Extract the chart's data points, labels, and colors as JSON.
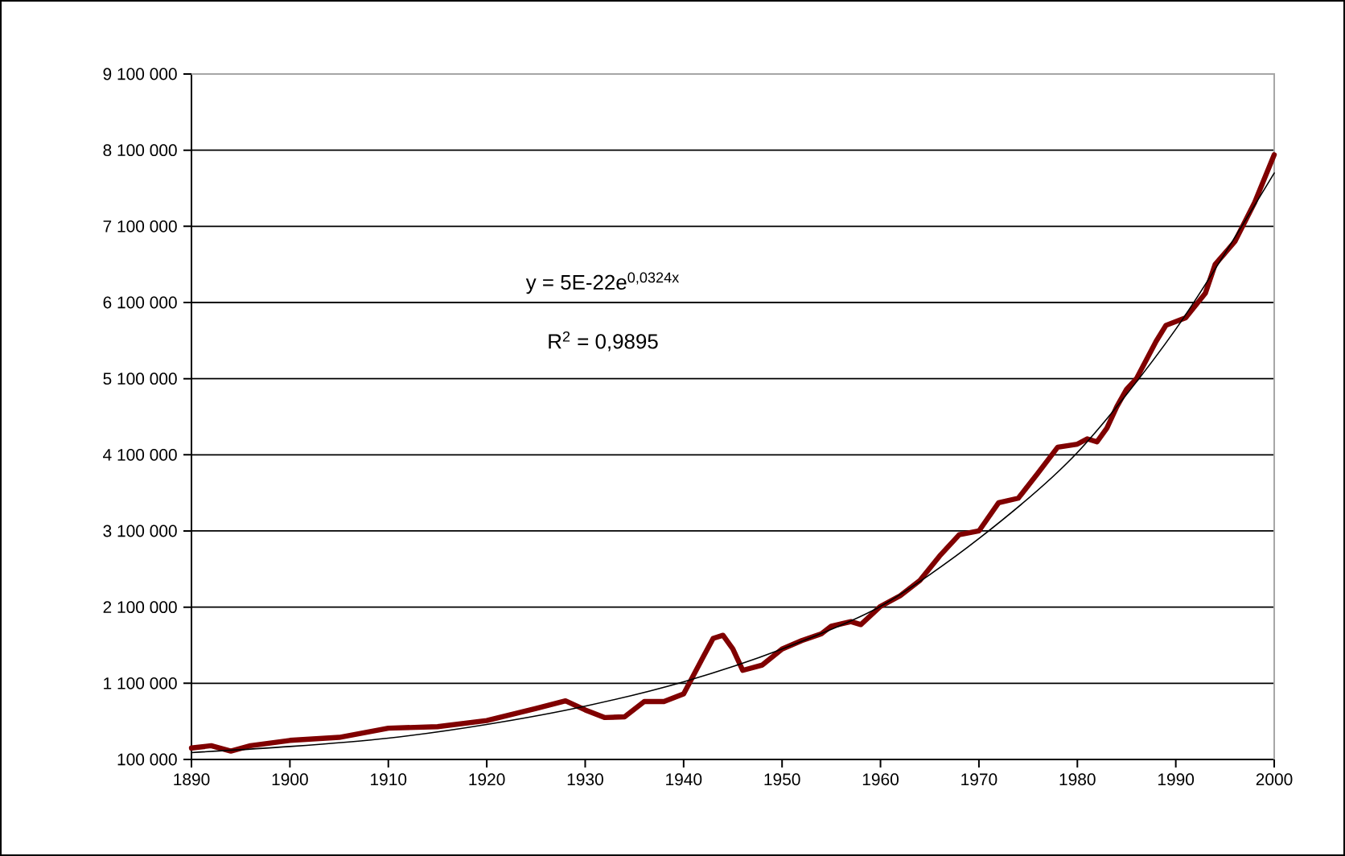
{
  "chart_data": {
    "type": "line",
    "xlim": [
      1890,
      2000
    ],
    "ylim": [
      100000,
      9100000
    ],
    "xticks": [
      1890,
      1900,
      1910,
      1920,
      1930,
      1940,
      1950,
      1960,
      1970,
      1980,
      1990,
      2000
    ],
    "yticks": [
      {
        "value": 100000,
        "label": "100 000"
      },
      {
        "value": 1100000,
        "label": "1 100 000"
      },
      {
        "value": 2100000,
        "label": "2 100 000"
      },
      {
        "value": 3100000,
        "label": "3 100 000"
      },
      {
        "value": 4100000,
        "label": "4 100 000"
      },
      {
        "value": 5100000,
        "label": "5 100 000"
      },
      {
        "value": 6100000,
        "label": "6 100 000"
      },
      {
        "value": 7100000,
        "label": "7 100 000"
      },
      {
        "value": 8100000,
        "label": "8 100 000"
      },
      {
        "value": 9100000,
        "label": "9 100 000"
      }
    ],
    "grid": "y",
    "marker": "none",
    "line_style": "solid",
    "series": [
      {
        "color": "#800000",
        "x": [
          1890,
          1892,
          1894,
          1896,
          1900,
          1905,
          1910,
          1915,
          1920,
          1925,
          1928,
          1930,
          1932,
          1934,
          1936,
          1938,
          1940,
          1942,
          1943,
          1944,
          1945,
          1946,
          1948,
          1950,
          1952,
          1954,
          1955,
          1957,
          1958,
          1960,
          1962,
          1964,
          1966,
          1968,
          1970,
          1972,
          1974,
          1976,
          1978,
          1980,
          1981,
          1982,
          1983,
          1984,
          1985,
          1986,
          1988,
          1989,
          1991,
          1993,
          1994,
          1996,
          1998,
          2000
        ],
        "values": [
          250000,
          280000,
          210000,
          280000,
          350000,
          390000,
          510000,
          530000,
          610000,
          770000,
          870000,
          750000,
          650000,
          660000,
          860000,
          860000,
          960000,
          1450000,
          1690000,
          1730000,
          1550000,
          1270000,
          1340000,
          1550000,
          1660000,
          1750000,
          1850000,
          1910000,
          1870000,
          2110000,
          2250000,
          2450000,
          2770000,
          3050000,
          3100000,
          3470000,
          3530000,
          3860000,
          4200000,
          4240000,
          4310000,
          4270000,
          4450000,
          4730000,
          4960000,
          5100000,
          5590000,
          5800000,
          5900000,
          6220000,
          6600000,
          6900000,
          7410000,
          8040000
        ]
      },
      {
        "color": "#000000",
        "x": [
          1890,
          1900,
          1910,
          1920,
          1930,
          1940,
          1950,
          1960,
          1970,
          1980,
          1990,
          2000
        ],
        "values": [
          190000,
          270000,
          380000,
          560000,
          800000,
          1120000,
          1550000,
          2110000,
          3000000,
          4130000,
          5750000,
          7800000
        ]
      }
    ],
    "annotations": [
      "y = 5E-22e$^{0,0324x}$",
      "R$^{2}$ = 0,9895"
    ]
  }
}
